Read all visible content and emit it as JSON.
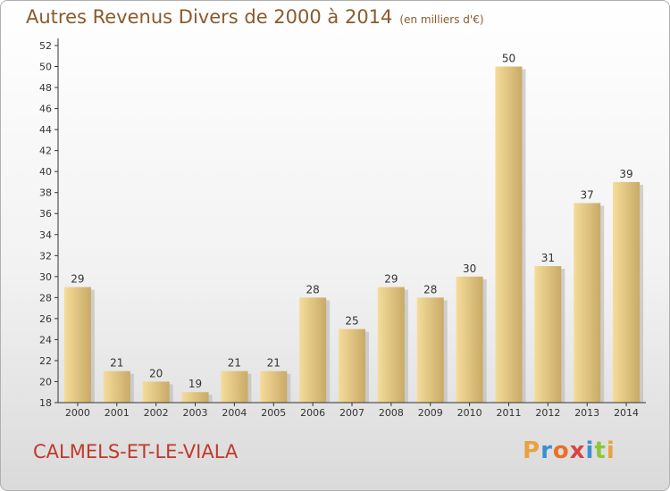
{
  "header": {
    "title": "Autres Revenus Divers de 2000 à 2014",
    "unit": "(en milliers d'€)"
  },
  "footer": {
    "commune": "CALMELS-ET-LE-VIALA",
    "logo": {
      "text": "Proxiti",
      "letter_colors": [
        "#e8a33d",
        "#3f8fd0",
        "#e8702a",
        "#d64541",
        "#3f8fd0",
        "#8cc63f",
        "#e8a33d"
      ]
    }
  },
  "chart_data": {
    "type": "bar",
    "categories": [
      "2000",
      "2001",
      "2002",
      "2003",
      "2004",
      "2005",
      "2006",
      "2007",
      "2008",
      "2009",
      "2010",
      "2011",
      "2012",
      "2013",
      "2014"
    ],
    "values": [
      29,
      21,
      20,
      19,
      21,
      21,
      28,
      25,
      29,
      28,
      30,
      50,
      31,
      37,
      39
    ],
    "title": "Autres Revenus Divers de 2000 à 2014",
    "subtitle": "(en milliers d'€)",
    "xlabel": "",
    "ylabel": "",
    "ylim": [
      18,
      52
    ],
    "yticks": [
      18,
      20,
      22,
      24,
      26,
      28,
      30,
      32,
      34,
      36,
      38,
      40,
      42,
      44,
      46,
      48,
      50,
      52
    ],
    "grid": false,
    "legend": "none",
    "colors": {
      "bar_light": "#f5dc9a",
      "bar_dark": "#c9aa66",
      "shadow": "#b8b8b8",
      "axis": "#333333",
      "text": "#333333"
    }
  }
}
